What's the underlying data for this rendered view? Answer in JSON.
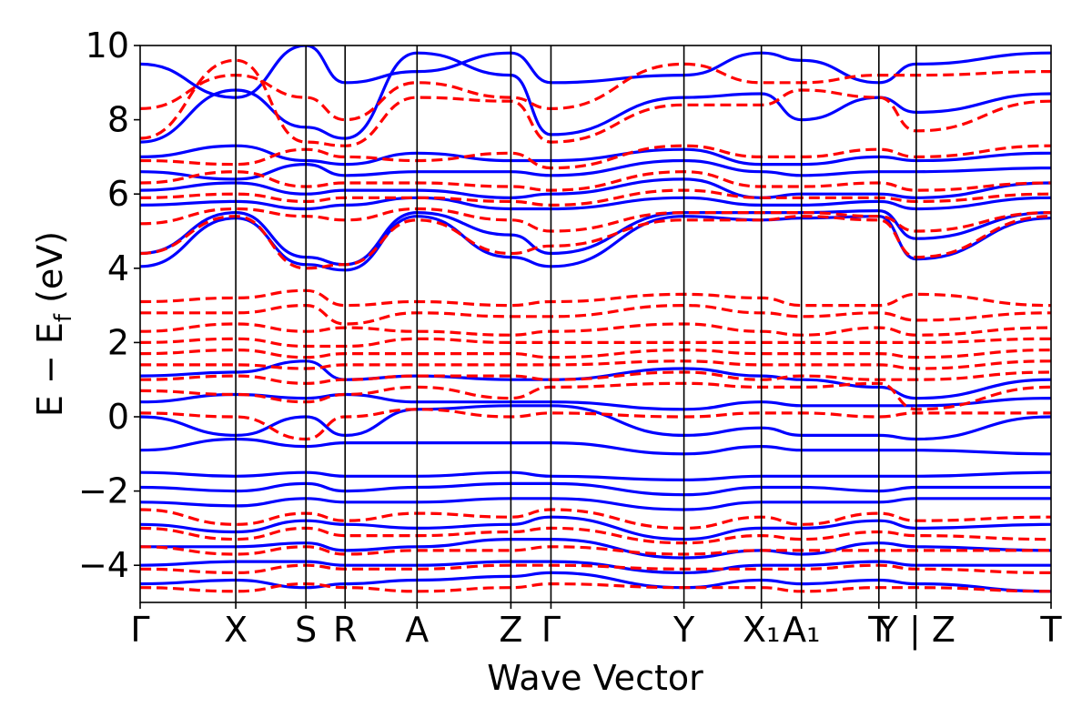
{
  "chart_data": {
    "type": "line",
    "title": "",
    "xlabel": "Wave Vector",
    "ylabel": "E − E_f (eV)",
    "ylabel_parts": {
      "main": "E − E",
      "sub": "f",
      "unit": "(eV)"
    },
    "ylim": [
      -5,
      10
    ],
    "yticks": [
      10,
      8,
      6,
      4,
      2,
      0,
      -2,
      -4
    ],
    "ytick_labels": [
      "10",
      "8",
      "6",
      "4",
      "2",
      "0",
      "−2",
      "−4"
    ],
    "x_range": [
      0,
      1
    ],
    "kpoints": [
      {
        "label": "Γ",
        "x": 0.0
      },
      {
        "label": "X",
        "x": 0.105
      },
      {
        "label": "S",
        "x": 0.182
      },
      {
        "label": "R",
        "x": 0.225
      },
      {
        "label": "A",
        "x": 0.304
      },
      {
        "label": "Z",
        "x": 0.407
      },
      {
        "label": "Γ",
        "x": 0.451
      },
      {
        "label": "Y",
        "x": 0.597
      },
      {
        "label": "X₁",
        "x": 0.682
      },
      {
        "label": "A₁",
        "x": 0.726
      },
      {
        "label": "T",
        "x": 0.811
      },
      {
        "label": "Y | Z",
        "x": 0.852
      },
      {
        "label": "T",
        "x": 1.0
      }
    ],
    "series_styles": [
      {
        "name": "blue-solid",
        "color": "#0000ff",
        "dash": "solid"
      },
      {
        "name": "red-dashed",
        "color": "#ff0000",
        "dash": "dashed"
      }
    ],
    "series": [
      {
        "name": "blue-1",
        "style": "blue-solid",
        "values": [
          4.05,
          5.35,
          4.1,
          3.95,
          5.4,
          4.3,
          4.05,
          5.4,
          5.3,
          5.35,
          5.4,
          4.25,
          5.35
        ]
      },
      {
        "name": "blue-2",
        "style": "blue-solid",
        "values": [
          4.4,
          5.5,
          4.3,
          4.1,
          5.5,
          4.9,
          4.4,
          5.5,
          5.5,
          5.5,
          5.55,
          4.8,
          5.5
        ]
      },
      {
        "name": "blue-3",
        "style": "blue-solid",
        "values": [
          5.7,
          5.8,
          5.6,
          5.7,
          5.9,
          5.6,
          5.6,
          5.9,
          5.7,
          5.7,
          5.8,
          5.6,
          5.9
        ]
      },
      {
        "name": "blue-4",
        "style": "blue-solid",
        "values": [
          6.1,
          6.3,
          6.0,
          6.1,
          6.1,
          5.9,
          6.0,
          6.4,
          5.9,
          6.0,
          6.0,
          5.9,
          6.3
        ]
      },
      {
        "name": "blue-5",
        "style": "blue-solid",
        "values": [
          6.6,
          6.4,
          6.8,
          6.5,
          6.6,
          6.6,
          6.5,
          6.9,
          6.6,
          6.5,
          6.6,
          6.6,
          6.7
        ]
      },
      {
        "name": "blue-6",
        "style": "blue-solid",
        "values": [
          7.0,
          7.3,
          6.9,
          6.8,
          7.1,
          6.9,
          6.9,
          7.2,
          6.8,
          6.8,
          7.0,
          6.9,
          7.1
        ]
      },
      {
        "name": "blue-7",
        "style": "blue-solid",
        "values": [
          7.4,
          8.8,
          7.8,
          7.5,
          9.8,
          9.2,
          7.6,
          8.6,
          8.7,
          8.0,
          8.6,
          8.2,
          8.7
        ]
      },
      {
        "name": "blue-8",
        "style": "blue-solid",
        "values": [
          9.5,
          8.6,
          10.0,
          9.0,
          9.3,
          9.8,
          9.0,
          9.2,
          9.8,
          9.6,
          9.0,
          9.5,
          9.8
        ]
      },
      {
        "name": "blue-9",
        "style": "blue-solid",
        "values": [
          1.1,
          1.2,
          1.5,
          1.0,
          1.1,
          1.0,
          1.0,
          1.3,
          1.1,
          1.0,
          0.8,
          0.5,
          1.0
        ]
      },
      {
        "name": "blue-10",
        "style": "blue-solid",
        "values": [
          0.4,
          0.6,
          0.5,
          0.6,
          0.4,
          0.4,
          0.4,
          0.2,
          0.4,
          0.3,
          0.3,
          0.3,
          0.5
        ]
      },
      {
        "name": "blue-11",
        "style": "blue-solid",
        "values": [
          0.0,
          -0.5,
          0.0,
          -0.5,
          0.2,
          0.3,
          0.3,
          -0.5,
          -0.3,
          -0.5,
          -0.5,
          -0.6,
          0.0
        ]
      },
      {
        "name": "blue-12",
        "style": "blue-solid",
        "values": [
          -0.9,
          -0.6,
          -0.8,
          -0.7,
          -0.7,
          -0.7,
          -0.7,
          -1.0,
          -0.8,
          -0.9,
          -0.9,
          -0.9,
          -1.0
        ]
      },
      {
        "name": "blue-13",
        "style": "blue-solid",
        "values": [
          -1.5,
          -1.6,
          -1.5,
          -1.6,
          -1.6,
          -1.5,
          -1.6,
          -1.7,
          -1.6,
          -1.6,
          -1.6,
          -1.6,
          -1.5
        ]
      },
      {
        "name": "blue-14",
        "style": "blue-solid",
        "values": [
          -1.9,
          -2.0,
          -1.8,
          -2.0,
          -1.9,
          -1.8,
          -1.8,
          -2.1,
          -1.9,
          -1.9,
          -2.0,
          -1.9,
          -1.9
        ]
      },
      {
        "name": "blue-15",
        "style": "blue-solid",
        "values": [
          -2.3,
          -2.4,
          -2.2,
          -2.3,
          -2.3,
          -2.2,
          -2.2,
          -2.5,
          -2.3,
          -2.3,
          -2.3,
          -2.2,
          -2.2
        ]
      },
      {
        "name": "blue-16",
        "style": "blue-solid",
        "values": [
          -2.9,
          -3.1,
          -2.8,
          -2.9,
          -3.0,
          -2.9,
          -2.7,
          -3.3,
          -3.0,
          -3.0,
          -2.8,
          -3.0,
          -2.9
        ]
      },
      {
        "name": "blue-17",
        "style": "blue-solid",
        "values": [
          -3.5,
          -3.5,
          -3.4,
          -3.6,
          -3.5,
          -3.3,
          -3.3,
          -3.8,
          -3.6,
          -3.7,
          -3.4,
          -3.5,
          -3.6
        ]
      },
      {
        "name": "blue-18",
        "style": "blue-solid",
        "values": [
          -4.0,
          -3.9,
          -3.9,
          -4.0,
          -4.0,
          -3.9,
          -3.9,
          -4.2,
          -4.0,
          -4.0,
          -3.9,
          -4.0,
          -4.0
        ]
      },
      {
        "name": "blue-19",
        "style": "blue-solid",
        "values": [
          -4.5,
          -4.4,
          -4.6,
          -4.5,
          -4.4,
          -4.3,
          -4.2,
          -4.6,
          -4.4,
          -4.5,
          -4.4,
          -4.5,
          -4.7
        ]
      },
      {
        "name": "red-1",
        "style": "red-dashed",
        "values": [
          4.4,
          5.4,
          4.0,
          4.1,
          5.3,
          4.4,
          4.6,
          5.3,
          5.3,
          5.4,
          5.3,
          4.3,
          5.4
        ]
      },
      {
        "name": "red-2",
        "style": "red-dashed",
        "values": [
          5.2,
          5.6,
          5.4,
          5.3,
          5.6,
          5.3,
          5.0,
          5.5,
          5.5,
          5.5,
          5.4,
          5.0,
          5.5
        ]
      },
      {
        "name": "red-3",
        "style": "red-dashed",
        "values": [
          5.9,
          6.0,
          5.8,
          5.9,
          5.9,
          5.8,
          5.7,
          6.1,
          5.9,
          5.9,
          5.9,
          5.8,
          6.0
        ]
      },
      {
        "name": "red-4",
        "style": "red-dashed",
        "values": [
          6.3,
          6.6,
          6.2,
          6.3,
          6.3,
          6.2,
          6.1,
          6.6,
          6.2,
          6.2,
          6.3,
          6.1,
          6.3
        ]
      },
      {
        "name": "red-5",
        "style": "red-dashed",
        "values": [
          6.9,
          6.8,
          7.2,
          7.0,
          6.9,
          7.1,
          6.7,
          7.3,
          7.0,
          7.0,
          7.2,
          7.0,
          7.3
        ]
      },
      {
        "name": "red-6",
        "style": "red-dashed",
        "values": [
          7.5,
          9.6,
          7.4,
          7.3,
          8.6,
          8.5,
          7.4,
          8.4,
          8.4,
          8.8,
          8.6,
          7.7,
          8.5
        ]
      },
      {
        "name": "red-7",
        "style": "red-dashed",
        "values": [
          8.3,
          9.2,
          8.6,
          8.0,
          9.0,
          8.6,
          8.3,
          9.5,
          9.0,
          9.0,
          9.2,
          9.2,
          9.3
        ]
      },
      {
        "name": "red-8",
        "style": "red-dashed",
        "values": [
          3.1,
          3.2,
          3.4,
          3.0,
          3.1,
          3.0,
          3.1,
          3.3,
          3.2,
          3.0,
          3.0,
          3.3,
          3.0
        ]
      },
      {
        "name": "red-9",
        "style": "red-dashed",
        "values": [
          2.8,
          2.8,
          3.0,
          2.5,
          2.8,
          2.7,
          2.7,
          3.0,
          2.8,
          2.7,
          2.8,
          2.6,
          2.8
        ]
      },
      {
        "name": "red-10",
        "style": "red-dashed",
        "values": [
          2.3,
          2.5,
          2.3,
          2.4,
          2.3,
          2.2,
          2.3,
          2.5,
          2.3,
          2.2,
          2.4,
          2.2,
          2.4
        ]
      },
      {
        "name": "red-11",
        "style": "red-dashed",
        "values": [
          2.0,
          2.1,
          1.9,
          1.9,
          2.1,
          2.0,
          2.0,
          2.0,
          2.0,
          2.0,
          2.0,
          2.0,
          2.1
        ]
      },
      {
        "name": "red-12",
        "style": "red-dashed",
        "values": [
          1.7,
          1.8,
          1.6,
          1.7,
          1.7,
          1.7,
          1.6,
          1.8,
          1.7,
          1.7,
          1.7,
          1.6,
          1.8
        ]
      },
      {
        "name": "red-13",
        "style": "red-dashed",
        "values": [
          1.4,
          1.4,
          1.3,
          1.4,
          1.4,
          1.4,
          1.4,
          1.5,
          1.4,
          1.4,
          1.4,
          1.3,
          1.5
        ]
      },
      {
        "name": "red-14",
        "style": "red-dashed",
        "values": [
          1.0,
          1.1,
          0.9,
          1.0,
          1.1,
          1.1,
          1.0,
          1.2,
          1.0,
          1.1,
          1.0,
          1.0,
          1.2
        ]
      },
      {
        "name": "red-15",
        "style": "red-dashed",
        "values": [
          0.7,
          0.6,
          0.4,
          0.6,
          0.8,
          0.5,
          0.8,
          0.9,
          0.8,
          0.8,
          0.9,
          0.2,
          0.8
        ]
      },
      {
        "name": "red-16",
        "style": "red-dashed",
        "values": [
          0.1,
          0.0,
          -0.6,
          0.0,
          0.2,
          0.0,
          0.1,
          0.0,
          0.1,
          0.1,
          0.0,
          0.1,
          0.1
        ]
      },
      {
        "name": "red-17",
        "style": "red-dashed",
        "values": [
          -2.5,
          -2.9,
          -2.6,
          -2.8,
          -2.6,
          -2.7,
          -2.5,
          -3.0,
          -2.7,
          -2.9,
          -2.6,
          -2.8,
          -2.7
        ]
      },
      {
        "name": "red-18",
        "style": "red-dashed",
        "values": [
          -3.0,
          -3.3,
          -3.0,
          -3.2,
          -3.2,
          -3.1,
          -3.0,
          -3.4,
          -3.2,
          -3.3,
          -3.1,
          -3.2,
          -3.3
        ]
      },
      {
        "name": "red-19",
        "style": "red-dashed",
        "values": [
          -3.5,
          -3.7,
          -3.5,
          -3.7,
          -3.6,
          -3.6,
          -3.5,
          -3.7,
          -3.6,
          -3.6,
          -3.6,
          -3.6,
          -3.6
        ]
      },
      {
        "name": "red-20",
        "style": "red-dashed",
        "values": [
          -4.1,
          -4.2,
          -4.0,
          -4.1,
          -4.1,
          -4.0,
          -4.0,
          -4.1,
          -4.1,
          -4.1,
          -4.0,
          -4.1,
          -4.2
        ]
      },
      {
        "name": "red-21",
        "style": "red-dashed",
        "values": [
          -4.6,
          -4.7,
          -4.5,
          -4.6,
          -4.7,
          -4.6,
          -4.5,
          -4.6,
          -4.6,
          -4.7,
          -4.6,
          -4.6,
          -4.7
        ]
      }
    ]
  }
}
